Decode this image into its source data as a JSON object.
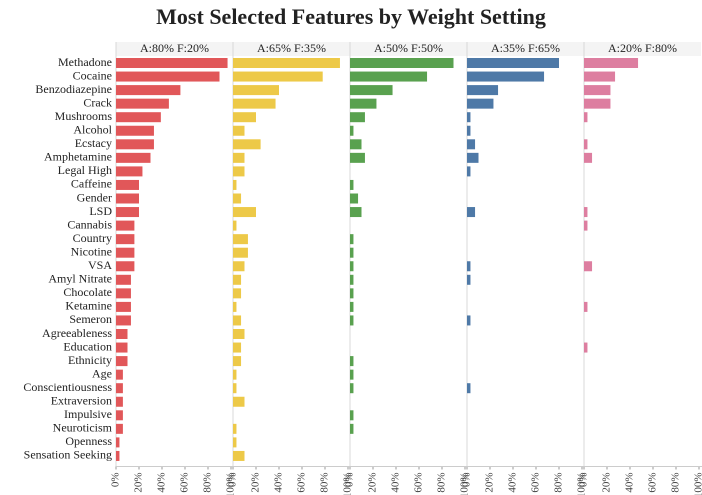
{
  "chart_data": {
    "type": "bar",
    "title": "Most Selected Features by Weight Setting",
    "categories": [
      "Methadone",
      "Cocaine",
      "Benzodiazepine",
      "Crack",
      "Mushrooms",
      "Alcohol",
      "Ecstacy",
      "Amphetamine",
      "Legal High",
      "Caffeine",
      "Gender",
      "LSD",
      "Cannabis",
      "Country",
      "Nicotine",
      "VSA",
      "Amyl Nitrate",
      "Chocolate",
      "Ketamine",
      "Semeron",
      "Agreeableness",
      "Education",
      "Ethnicity",
      "Age",
      "Conscientiousness",
      "Extraversion",
      "Impulsive",
      "Neuroticism",
      "Openness",
      "Sensation Seeking"
    ],
    "series": [
      {
        "name": "A:80% F:20%",
        "color": "#e15759",
        "values": [
          97,
          90,
          56,
          46,
          39,
          33,
          33,
          30,
          23,
          20,
          20,
          20,
          16,
          16,
          16,
          16,
          13,
          13,
          13,
          13,
          10,
          10,
          10,
          6,
          6,
          6,
          6,
          6,
          3,
          3
        ]
      },
      {
        "name": "A:65% F:35%",
        "color": "#edc948",
        "values": [
          93,
          78,
          40,
          37,
          20,
          10,
          24,
          10,
          10,
          3,
          7,
          20,
          3,
          13,
          13,
          10,
          7,
          7,
          3,
          7,
          10,
          7,
          7,
          3,
          3,
          10,
          0,
          3,
          3,
          10
        ]
      },
      {
        "name": "A:50% F:50%",
        "color": "#59a14f",
        "values": [
          90,
          67,
          37,
          23,
          13,
          3,
          10,
          13,
          0,
          3,
          7,
          10,
          0,
          3,
          3,
          3,
          3,
          3,
          3,
          3,
          0,
          0,
          3,
          3,
          3,
          0,
          3,
          3,
          0,
          0
        ]
      },
      {
        "name": "A:35% F:65%",
        "color": "#4e79a7",
        "values": [
          80,
          67,
          27,
          23,
          3,
          3,
          7,
          10,
          3,
          0,
          0,
          7,
          0,
          0,
          0,
          3,
          3,
          0,
          0,
          3,
          0,
          0,
          0,
          0,
          3,
          0,
          0,
          0,
          0,
          0
        ]
      },
      {
        "name": "A:20% F:80%",
        "color": "#dd7ea0",
        "values": [
          47,
          27,
          23,
          23,
          3,
          0,
          3,
          7,
          0,
          0,
          0,
          3,
          3,
          0,
          0,
          7,
          0,
          0,
          3,
          0,
          0,
          3,
          0,
          0,
          0,
          0,
          0,
          0,
          0,
          0
        ]
      }
    ],
    "xlim": [
      0,
      100
    ],
    "xticks": [
      {
        "value": 0,
        "label": "0%"
      },
      {
        "value": 20,
        "label": "20%"
      },
      {
        "value": 40,
        "label": "40%"
      },
      {
        "value": 60,
        "label": "60%"
      },
      {
        "value": 80,
        "label": "80%"
      },
      {
        "value": 100,
        "label": "100%"
      }
    ]
  }
}
